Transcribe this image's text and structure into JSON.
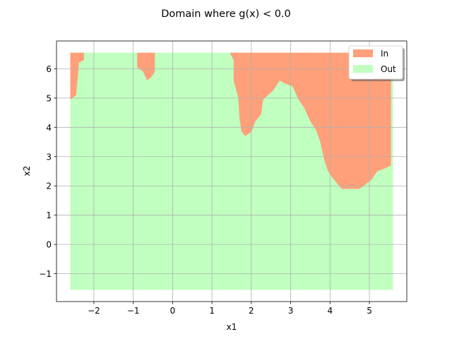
{
  "chart_data": {
    "type": "area",
    "title": "Domain where g(x) < 0.0",
    "xlabel": "x1",
    "ylabel": "x2",
    "xlim": [
      -2.95,
      5.95
    ],
    "ylim": [
      -1.95,
      6.95
    ],
    "xticks": [
      -2,
      -1,
      0,
      1,
      2,
      3,
      4,
      5
    ],
    "yticks": [
      -1,
      0,
      1,
      2,
      3,
      4,
      5,
      6
    ],
    "xtick_labels": [
      "−2",
      "−1",
      "0",
      "1",
      "2",
      "3",
      "4",
      "5"
    ],
    "ytick_labels": [
      "−1",
      "0",
      "1",
      "2",
      "3",
      "4",
      "5",
      "6"
    ],
    "grid": true,
    "legend_position": "top-right",
    "domain_extent": {
      "x": [
        -2.6,
        5.6
      ],
      "y": [
        -1.55,
        6.55
      ]
    },
    "series": [
      {
        "name": "In",
        "color": "#ffa07a",
        "regions": [
          [
            [
              -2.6,
              6.55
            ],
            [
              -2.25,
              6.55
            ],
            [
              -2.25,
              6.3
            ],
            [
              -2.38,
              6.2
            ],
            [
              -2.45,
              5.1
            ],
            [
              -2.6,
              4.95
            ]
          ],
          [
            [
              -0.9,
              6.55
            ],
            [
              -0.45,
              6.55
            ],
            [
              -0.45,
              5.9
            ],
            [
              -0.55,
              5.7
            ],
            [
              -0.65,
              5.6
            ],
            [
              -0.75,
              5.9
            ],
            [
              -0.9,
              6.05
            ]
          ],
          [
            [
              1.45,
              6.55
            ],
            [
              5.55,
              6.55
            ],
            [
              5.55,
              2.7
            ],
            [
              5.4,
              2.6
            ],
            [
              5.2,
              2.5
            ],
            [
              5.05,
              2.2
            ],
            [
              4.85,
              2.0
            ],
            [
              4.75,
              1.9
            ],
            [
              4.3,
              1.9
            ],
            [
              4.2,
              2.05
            ],
            [
              4.05,
              2.3
            ],
            [
              3.95,
              2.5
            ],
            [
              3.85,
              2.9
            ],
            [
              3.75,
              3.5
            ],
            [
              3.65,
              3.9
            ],
            [
              3.5,
              4.2
            ],
            [
              3.35,
              4.65
            ],
            [
              3.2,
              4.95
            ],
            [
              3.05,
              5.4
            ],
            [
              2.85,
              5.5
            ],
            [
              2.72,
              5.6
            ],
            [
              2.55,
              5.25
            ],
            [
              2.3,
              4.95
            ],
            [
              2.25,
              4.45
            ],
            [
              2.1,
              4.2
            ],
            [
              2.0,
              3.85
            ],
            [
              1.85,
              3.7
            ],
            [
              1.75,
              3.85
            ],
            [
              1.7,
              4.3
            ],
            [
              1.67,
              5.0
            ],
            [
              1.55,
              5.6
            ],
            [
              1.55,
              6.3
            ]
          ]
        ]
      },
      {
        "name": "Out",
        "color": "#c0ffc0"
      }
    ]
  }
}
